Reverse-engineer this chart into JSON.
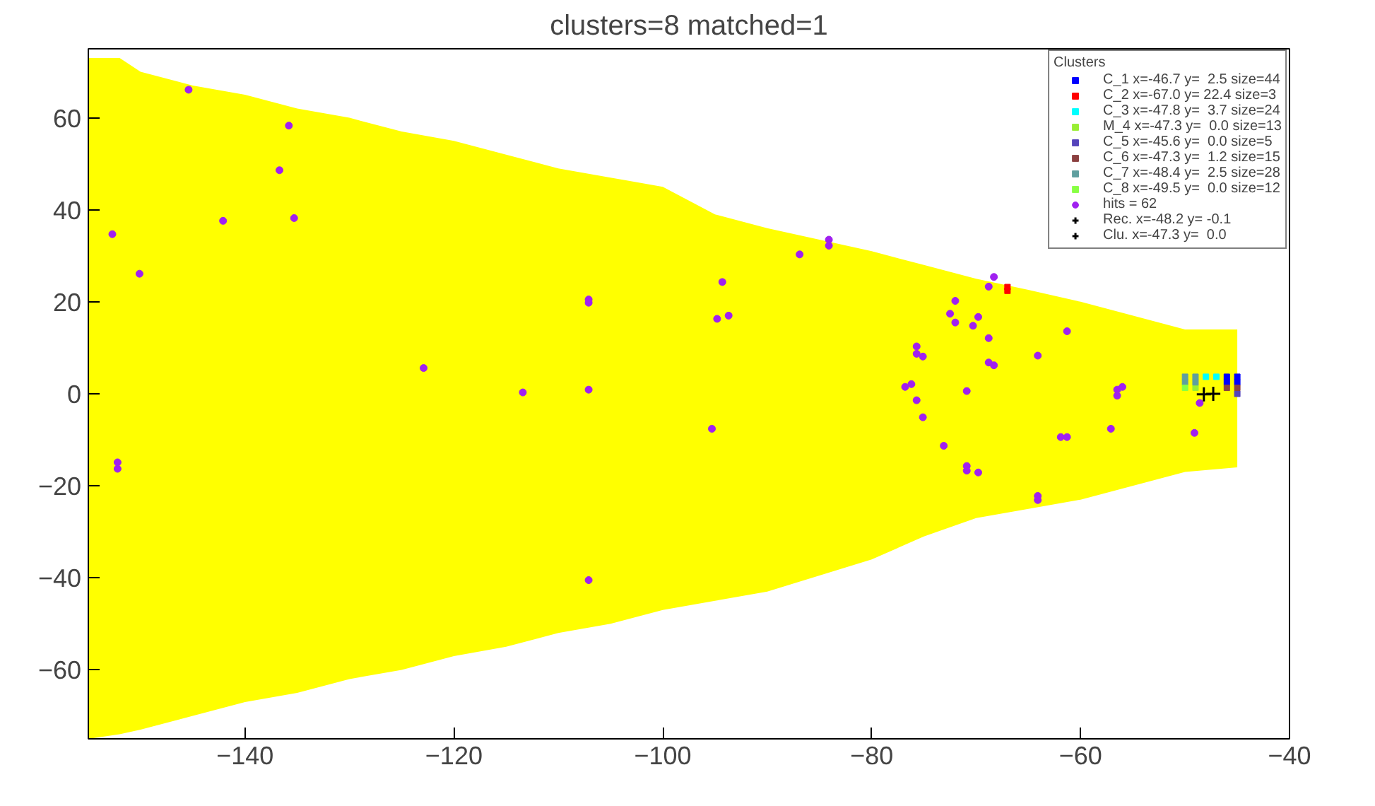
{
  "chart_data": {
    "type": "scatter",
    "title": "clusters=8 matched=1",
    "legend_title": "Clusters",
    "legend": "top right",
    "grid": false,
    "xlim": [
      -155,
      -40
    ],
    "ylim": [
      -75,
      75
    ],
    "xticks": [
      -140,
      -120,
      -100,
      -80,
      -60,
      -40
    ],
    "yticks": [
      -60,
      -40,
      -20,
      0,
      20,
      40,
      60
    ],
    "series": [
      {
        "type": "area",
        "color": "#ffff00",
        "x": [
          -155,
          -152,
          -150,
          -145,
          -140,
          -135,
          -130,
          -125,
          -120,
          -115,
          -110,
          -105,
          -100,
          -95,
          -90,
          -80,
          -75,
          -70,
          -65,
          -60,
          -50,
          -45
        ],
        "values": [
          73,
          73,
          70,
          67,
          65,
          62,
          60,
          57,
          55,
          52,
          49,
          47,
          45,
          39,
          36,
          31,
          28,
          25,
          22.6,
          20,
          14,
          14
        ]
      },
      {
        "type": "area",
        "color": "#ffff00",
        "x": [
          -155,
          -152,
          -150,
          -145,
          -140,
          -135,
          -130,
          -125,
          -120,
          -115,
          -110,
          -105,
          -100,
          -95,
          -90,
          -80,
          -75,
          -70,
          -65,
          -60,
          -50,
          -45
        ],
        "values": [
          -75,
          -74,
          -73,
          -70,
          -67,
          -65,
          -62,
          -60,
          -57,
          -55,
          -52,
          -50,
          -47,
          -45,
          -43,
          -36,
          -31,
          -27,
          -25,
          -23,
          -17,
          -16
        ]
      },
      {
        "name": "C_1 x=-46.7 y=  2.5 size=44",
        "color": "#0000ff",
        "marker": "square",
        "x": [
          -46,
          -45,
          -46,
          -45
        ],
        "values": [
          3.7,
          3.7,
          2.5,
          2.5
        ]
      },
      {
        "name": "C_2 x=-67.0 y= 22.4 size=3",
        "color": "#ff0000",
        "marker": "square",
        "x": [
          -67,
          -67
        ],
        "values": [
          22.4,
          23.2
        ]
      },
      {
        "name": "C_3 x=-47.8 y=  3.7 size=24",
        "color": "#00ffff",
        "marker": "square",
        "x": [
          -48,
          -47
        ],
        "values": [
          3.7,
          3.7
        ]
      },
      {
        "name": "M_4 x=-47.3 y=  0.0 size=13",
        "color": "#99ee33",
        "marker": "square",
        "x": [
          -49
        ],
        "values": [
          1.3
        ]
      },
      {
        "name": "C_5 x=-45.6 y=  0.0 size=5",
        "color": "#5544bb",
        "marker": "square",
        "x": [
          -45
        ],
        "values": [
          0
        ]
      },
      {
        "name": "C_6 x=-47.3 y=  1.2 size=15",
        "color": "#8b4040",
        "marker": "square",
        "x": [
          -46,
          -45
        ],
        "values": [
          1.3,
          1.3
        ]
      },
      {
        "name": "C_7 x=-48.4 y=  2.5 size=28",
        "color": "#5f9f9f",
        "marker": "square",
        "x": [
          -50,
          -49,
          -50,
          -49
        ],
        "values": [
          3.7,
          3.7,
          2.5,
          2.5
        ]
      },
      {
        "name": "C_8 x=-49.5 y=  0.0 size=12",
        "color": "#88ff44",
        "marker": "square",
        "x": [
          -50
        ],
        "values": [
          1.3
        ]
      },
      {
        "name": "hits = 62",
        "color": "#a020f0",
        "marker": "circle",
        "x": [
          -152.7,
          -150.1,
          -145.4,
          -142.1,
          -136.7,
          -135.8,
          -135.3,
          -152.2,
          -152.2,
          -122.9,
          -113.4,
          -107.1,
          -107.1,
          -107.1,
          -107.1,
          -94.3,
          -94.8,
          -93.7,
          -95.3,
          -86.9,
          -84.1,
          -84.1,
          -75.7,
          -75.7,
          -75.1,
          -76.8,
          -76.2,
          -75.7,
          -75.1,
          -73.1,
          -72.0,
          -72.5,
          -72.0,
          -70.3,
          -69.8,
          -70.9,
          -70.9,
          -70.9,
          -69.8,
          -68.3,
          -68.8,
          -68.8,
          -68.8,
          -68.3,
          -64.1,
          -61.3,
          -64.1,
          -64.1,
          -61.9,
          -61.3,
          -57.1,
          -56.5,
          -56.0,
          -56.5,
          -49.1,
          -48.6
        ],
        "values": [
          34.7,
          26.1,
          66.1,
          37.6,
          48.6,
          58.3,
          38.2,
          -14.9,
          -16.3,
          5.6,
          0.3,
          19.8,
          20.5,
          0.9,
          -40.5,
          24.3,
          16.3,
          17.0,
          -7.6,
          30.3,
          33.5,
          32.2,
          10.3,
          8.7,
          8.1,
          1.5,
          2.1,
          -1.4,
          -5.1,
          -11.3,
          20.2,
          17.4,
          15.5,
          14.8,
          16.7,
          0.6,
          -15.7,
          -16.7,
          -17.1,
          25.4,
          23.3,
          12.1,
          6.8,
          6.2,
          8.3,
          13.6,
          -22.2,
          -23.1,
          -9.4,
          -9.4,
          -7.6,
          0.9,
          1.5,
          -0.4,
          -8.5,
          -2.0
        ]
      },
      {
        "name": "Rec. x=-48.2 y= -0.1",
        "color": "#000000",
        "marker": "cross",
        "x": [
          -48.2
        ],
        "values": [
          -0.1
        ]
      },
      {
        "name": "Clu. x=-47.3 y=  0.0",
        "color": "#000000",
        "marker": "cross",
        "x": [
          -47.3
        ],
        "values": [
          0.0
        ]
      }
    ]
  }
}
